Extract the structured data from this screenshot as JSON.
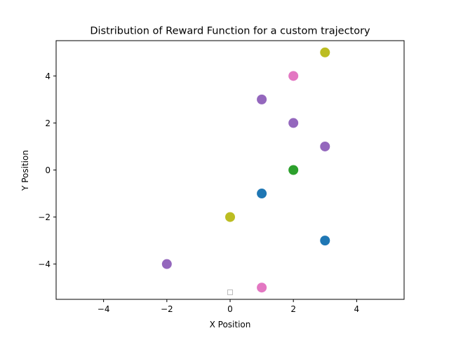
{
  "chart_data": {
    "type": "scatter",
    "title": "Distribution of Reward Function for a custom trajectory",
    "xlabel": "X Position",
    "ylabel": "Y Position",
    "xlim": [
      -5.5,
      5.5
    ],
    "ylim": [
      -5.5,
      5.5
    ],
    "xticks": [
      -4,
      -2,
      0,
      2,
      4
    ],
    "yticks": [
      -4,
      -2,
      0,
      2,
      4
    ],
    "xtick_labels": [
      "−4",
      "−2",
      "0",
      "2",
      "4"
    ],
    "ytick_labels": [
      "−4",
      "−2",
      "0",
      "2",
      "4"
    ],
    "grid": false,
    "points": [
      {
        "x": 3,
        "y": 5,
        "color": "#bcbd22"
      },
      {
        "x": 2,
        "y": 4,
        "color": "#e377c2"
      },
      {
        "x": 1,
        "y": 3,
        "color": "#9467bd"
      },
      {
        "x": 2,
        "y": 2,
        "color": "#9467bd"
      },
      {
        "x": 3,
        "y": 1,
        "color": "#9467bd"
      },
      {
        "x": 2,
        "y": 0,
        "color": "#2ca02c"
      },
      {
        "x": 1,
        "y": -1,
        "color": "#1f77b4"
      },
      {
        "x": 0,
        "y": -2,
        "color": "#bcbd22"
      },
      {
        "x": 3,
        "y": -3,
        "color": "#1f77b4"
      },
      {
        "x": -2,
        "y": -4,
        "color": "#9467bd"
      },
      {
        "x": 1,
        "y": -5,
        "color": "#e377c2"
      }
    ],
    "start_marker": {
      "x": 0,
      "y": -5.2,
      "shape": "hollow-square",
      "color": "#bbbbbb"
    }
  }
}
